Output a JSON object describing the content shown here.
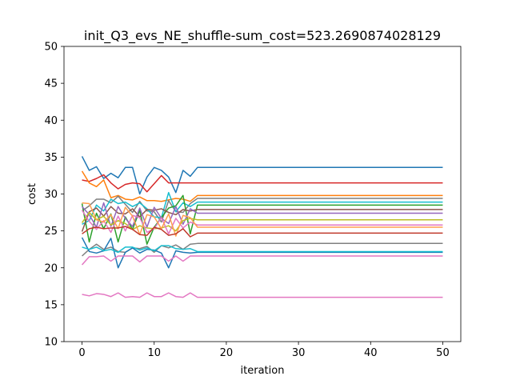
{
  "chart_data": {
    "type": "line",
    "title": "init_Q3_evs_NE_shuffle-sum_cost=523.2690874028129",
    "xlabel": "iteration",
    "ylabel": "cost",
    "xlim": [
      -2.5,
      52.5
    ],
    "ylim": [
      10,
      50
    ],
    "xticks": [
      0,
      10,
      20,
      30,
      40,
      50
    ],
    "yticks": [
      10,
      15,
      20,
      25,
      30,
      35,
      40,
      45,
      50
    ],
    "grid": false,
    "legend": "none",
    "x": [
      0,
      1,
      2,
      3,
      4,
      5,
      6,
      7,
      8,
      9,
      10,
      11,
      12,
      13,
      14,
      15,
      16,
      50
    ],
    "series": [
      {
        "color": "#1f77b4",
        "values": [
          35.1,
          33.2,
          33.7,
          32.1,
          32.8,
          32.2,
          33.6,
          33.6,
          30.0,
          32.3,
          33.6,
          33.2,
          32.3,
          30.2,
          33.2,
          32.4,
          33.6,
          33.6
        ]
      },
      {
        "color": "#d62728",
        "values": [
          31.9,
          31.7,
          32.1,
          32.6,
          31.5,
          30.7,
          31.3,
          31.5,
          31.4,
          30.3,
          31.4,
          32.5,
          31.5,
          31.5,
          31.5,
          31.5,
          31.5,
          31.5
        ]
      },
      {
        "color": "#ff7f0e",
        "values": [
          33.1,
          31.5,
          31.0,
          31.9,
          29.5,
          29.8,
          29.3,
          29.2,
          29.6,
          29.1,
          29.1,
          29.0,
          29.2,
          29.4,
          29.3,
          29.0,
          29.8,
          29.8
        ]
      },
      {
        "color": "#7f7f7f",
        "values": [
          27.7,
          28.4,
          29.3,
          29.3,
          28.8,
          29.7,
          28.6,
          27.5,
          29.0,
          27.7,
          27.6,
          26.2,
          29.1,
          27.6,
          27.5,
          28.7,
          29.4,
          29.4
        ]
      },
      {
        "color": "#17becf",
        "values": [
          25.9,
          26.4,
          28.5,
          27.7,
          29.3,
          28.7,
          28.9,
          28.3,
          28.8,
          28.0,
          26.9,
          26.8,
          30.2,
          27.6,
          28.8,
          28.3,
          28.9,
          28.9
        ]
      },
      {
        "color": "#2ca02c",
        "values": [
          28.7,
          23.5,
          27.4,
          25.3,
          27.3,
          23.5,
          26.9,
          25.2,
          27.8,
          23.2,
          25.5,
          26.8,
          28.1,
          28.4,
          29.8,
          24.6,
          28.5,
          28.5
        ]
      },
      {
        "color": "#8c564b",
        "values": [
          24.9,
          27.6,
          28.1,
          27.0,
          28.3,
          27.4,
          27.3,
          28.0,
          26.9,
          27.9,
          27.8,
          28.0,
          27.5,
          27.2,
          27.9,
          27.7,
          27.9,
          27.9
        ]
      },
      {
        "color": "#9467bd",
        "values": [
          28.3,
          27.2,
          25.5,
          28.8,
          25.6,
          28.3,
          26.7,
          25.6,
          28.1,
          25.5,
          28.2,
          26.7,
          26.0,
          28.3,
          25.9,
          28.0,
          27.4,
          27.4
        ]
      },
      {
        "color": "#bcbd22",
        "values": [
          26.1,
          27.5,
          26.5,
          27.0,
          25.8,
          26.4,
          26.0,
          25.2,
          25.7,
          25.4,
          25.3,
          25.4,
          25.7,
          25.0,
          26.4,
          26.7,
          26.5,
          26.5
        ]
      },
      {
        "color": "#e377c2",
        "values": [
          27.8,
          26.3,
          25.2,
          26.4,
          24.8,
          27.0,
          25.0,
          27.1,
          26.8,
          24.8,
          25.3,
          26.8,
          24.6,
          26.7,
          25.4,
          26.2,
          25.8,
          25.8
        ]
      },
      {
        "color": "#ff9f4f",
        "values": [
          28.8,
          28.7,
          26.5,
          26.2,
          27.2,
          25.3,
          28.2,
          27.0,
          24.5,
          27.2,
          26.9,
          25.3,
          27.3,
          24.3,
          27.1,
          26.8,
          25.5,
          25.5
        ]
      },
      {
        "color": "#c0392b",
        "values": [
          24.6,
          25.3,
          25.5,
          25.3,
          25.4,
          25.4,
          25.6,
          25.2,
          24.5,
          24.4,
          25.5,
          25.2,
          24.4,
          24.6,
          25.3,
          24.2,
          24.7,
          24.7
        ]
      },
      {
        "color": "#808080",
        "values": [
          21.6,
          22.5,
          23.2,
          22.5,
          22.8,
          22.2,
          22.1,
          22.7,
          22.6,
          22.9,
          22.1,
          23.0,
          22.7,
          23.1,
          22.5,
          23.2,
          23.3,
          23.3
        ]
      },
      {
        "color": "#1f77b4",
        "values": [
          24.1,
          22.2,
          22.0,
          22.3,
          24.0,
          20.0,
          22.1,
          22.7,
          22.0,
          22.5,
          22.4,
          22.0,
          20.0,
          22.3,
          22.1,
          22.0,
          22.1,
          22.1
        ]
      },
      {
        "color": "#17becf",
        "values": [
          22.8,
          22.5,
          22.8,
          22.3,
          22.5,
          22.1,
          22.8,
          22.8,
          22.4,
          22.7,
          22.3,
          23.0,
          23.0,
          22.6,
          22.5,
          22.6,
          22.2,
          22.2
        ]
      },
      {
        "color": "#e377c2",
        "values": [
          20.4,
          21.5,
          21.5,
          21.6,
          20.9,
          21.6,
          21.6,
          21.6,
          20.8,
          21.6,
          21.6,
          21.6,
          20.9,
          21.6,
          20.9,
          21.6,
          21.6,
          21.6
        ]
      },
      {
        "color": "#e377c2",
        "values": [
          16.4,
          16.2,
          16.5,
          16.4,
          16.1,
          16.6,
          16.0,
          16.1,
          16.0,
          16.6,
          16.1,
          16.1,
          16.6,
          16.1,
          16.0,
          16.6,
          16.0,
          16.0
        ]
      }
    ]
  }
}
